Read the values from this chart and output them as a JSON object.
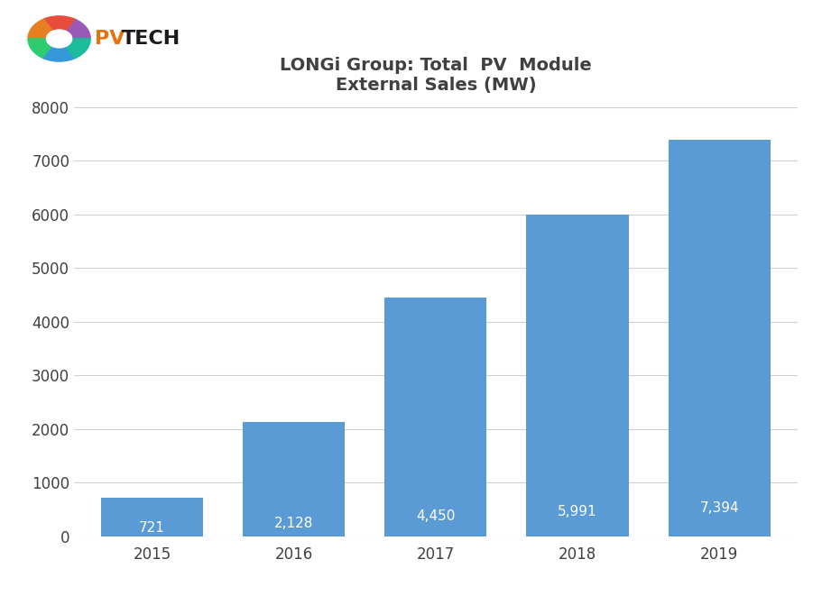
{
  "title_line1": "LONGi Group: Total  PV  Module",
  "title_line2": "External Sales (MW)",
  "categories": [
    "2015",
    "2016",
    "2017",
    "2018",
    "2019"
  ],
  "values": [
    721,
    2128,
    4450,
    5991,
    7394
  ],
  "bar_color": "#5B9BD5",
  "bar_labels": [
    "721",
    "2,128",
    "4,450",
    "5,991",
    "7,394"
  ],
  "ylim": [
    0,
    8000
  ],
  "yticks": [
    0,
    1000,
    2000,
    3000,
    4000,
    5000,
    6000,
    7000,
    8000
  ],
  "title_fontsize": 14,
  "tick_fontsize": 12,
  "bar_label_fontsize": 11,
  "background_color": "#FFFFFF",
  "grid_color": "#D0D0D0",
  "bar_label_color": "#FFFFFF",
  "title_color": "#404040",
  "tick_color": "#404040",
  "bar_width": 0.72
}
